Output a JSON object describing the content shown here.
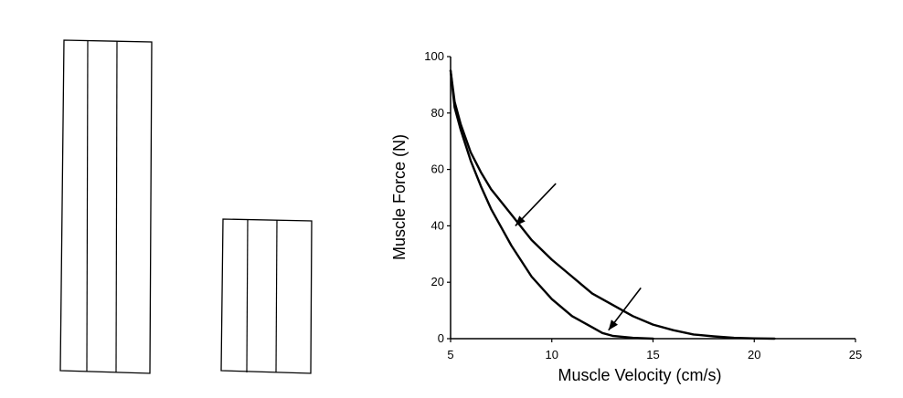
{
  "chart_data": {
    "type": "line",
    "title": "",
    "xlabel": "Muscle Velocity (cm/s)",
    "ylabel": "Muscle Force (N)",
    "xlim": [
      5,
      25
    ],
    "ylim": [
      0,
      100
    ],
    "xticks": [
      "5",
      "10",
      "15",
      "20",
      "25"
    ],
    "yticks": [
      "0",
      "20",
      "40",
      "60",
      "80",
      "100"
    ],
    "grid": false,
    "legend": "none",
    "series": [
      {
        "x": [
          5,
          5.2,
          5.5,
          6,
          6.5,
          7,
          8,
          9,
          10,
          11,
          12,
          13,
          14,
          15,
          16,
          17,
          18,
          19,
          20,
          21
        ],
        "y": [
          95,
          84,
          76,
          66,
          59,
          53,
          44,
          35,
          28,
          22,
          16,
          12,
          8,
          5,
          3,
          1.5,
          0.8,
          0.3,
          0.1,
          0
        ]
      },
      {
        "x": [
          5,
          5.2,
          5.5,
          6,
          6.5,
          7,
          8,
          9,
          10,
          11,
          12,
          12.5,
          13,
          14,
          15
        ],
        "y": [
          95,
          82,
          74,
          63,
          54,
          46,
          33,
          22,
          14,
          8,
          4,
          2,
          1,
          0.3,
          0
        ]
      }
    ],
    "annotations": [
      {
        "type": "arrow",
        "from": [
          10.2,
          55
        ],
        "to": [
          8.2,
          40
        ]
      },
      {
        "type": "arrow",
        "from": [
          14.4,
          18
        ],
        "to": [
          12.8,
          3
        ]
      }
    ]
  },
  "figure": {
    "tall_rect": {
      "columns": 3
    },
    "short_rect": {
      "columns": 3
    }
  }
}
